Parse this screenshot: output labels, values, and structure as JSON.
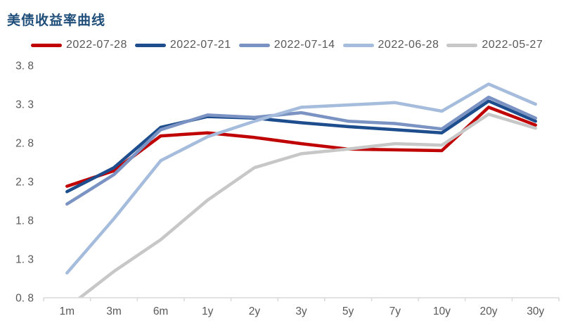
{
  "title": "美债收益率曲线",
  "theme": {
    "background": "#FFFFFF",
    "title_color": "#1F4E79",
    "axis_text_color": "#595959",
    "axis_line_color": "#D9D9D9"
  },
  "chart_data": {
    "type": "line",
    "title": "美债收益率曲线",
    "xlabel": "",
    "ylabel": "",
    "grid": false,
    "legend_position": "top",
    "ylim": [
      0.8,
      3.8
    ],
    "ytick_step": 0.5,
    "y_ticks": [
      {
        "label": "3. 8",
        "value": 3.8
      },
      {
        "label": "3. 3",
        "value": 3.3
      },
      {
        "label": "2. 8",
        "value": 2.8
      },
      {
        "label": "2. 3",
        "value": 2.3
      },
      {
        "label": "1. 8",
        "value": 1.8
      },
      {
        "label": "1. 3",
        "value": 1.3
      },
      {
        "label": "0. 8",
        "value": 0.8
      }
    ],
    "categories": [
      "1m",
      "3m",
      "6m",
      "1y",
      "2y",
      "3y",
      "5y",
      "7y",
      "10y",
      "20y",
      "30y"
    ],
    "series": [
      {
        "name": "2022-07-28",
        "color": "#C00000",
        "values": [
          2.24,
          2.44,
          2.89,
          2.93,
          2.87,
          2.79,
          2.72,
          2.71,
          2.7,
          3.26,
          3.03
        ]
      },
      {
        "name": "2022-07-21",
        "color": "#1D4D8C",
        "values": [
          2.17,
          2.48,
          3.0,
          3.14,
          3.12,
          3.06,
          3.01,
          2.97,
          2.93,
          3.34,
          3.08
        ]
      },
      {
        "name": "2022-07-14",
        "color": "#7A93C3",
        "values": [
          2.01,
          2.39,
          2.97,
          3.16,
          3.13,
          3.19,
          3.08,
          3.05,
          2.98,
          3.39,
          3.12
        ]
      },
      {
        "name": "2022-06-28",
        "color": "#A5BCDC",
        "values": [
          1.12,
          1.82,
          2.57,
          2.88,
          3.08,
          3.26,
          3.29,
          3.32,
          3.21,
          3.56,
          3.3
        ]
      },
      {
        "name": "2022-05-27",
        "color": "#C7C7C7",
        "values": [
          0.67,
          1.14,
          1.55,
          2.06,
          2.48,
          2.66,
          2.72,
          2.79,
          2.77,
          3.17,
          2.99
        ]
      }
    ]
  }
}
